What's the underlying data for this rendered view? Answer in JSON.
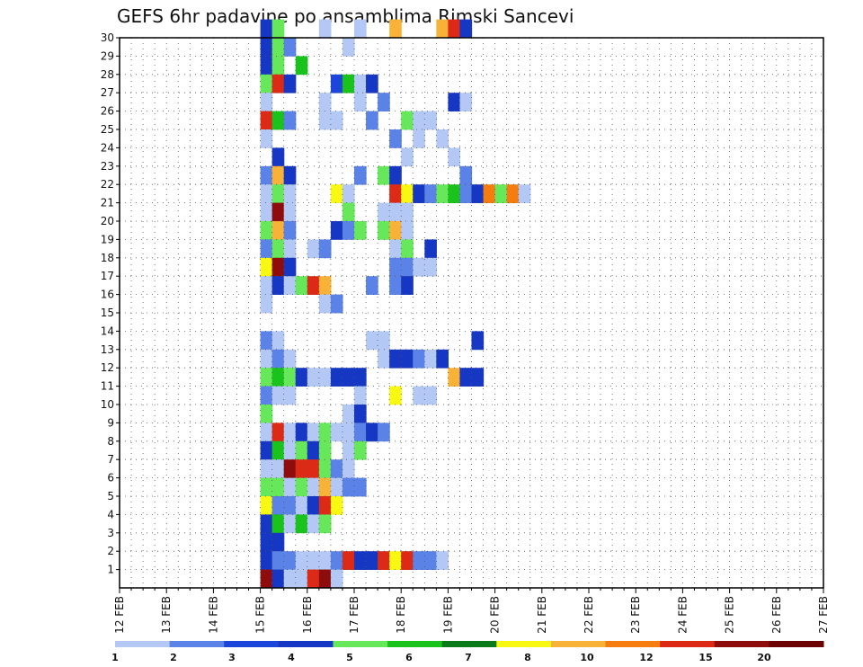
{
  "chart_data": {
    "type": "heatmap",
    "title": "GEFS 6hr padavine po ansamblima Rimski Sancevi",
    "xlabel": "",
    "ylabel": "",
    "x_ticks": [
      "12 FEB",
      "13 FEB",
      "14 FEB",
      "15 FEB",
      "16 FEB",
      "17 FEB",
      "18 FEB",
      "19 FEB",
      "20 FEB",
      "21 FEB",
      "22 FEB",
      "23 FEB",
      "24 FEB",
      "25 FEB",
      "26 FEB",
      "27 FEB"
    ],
    "xlim": [
      0,
      60
    ],
    "ylim": [
      0,
      30
    ],
    "y_ticks": [
      "1",
      "2",
      "3",
      "4",
      "5",
      "6",
      "7",
      "8",
      "9",
      "10",
      "11",
      "12",
      "13",
      "14",
      "15",
      "16",
      "17",
      "18",
      "19",
      "20",
      "21",
      "22",
      "23",
      "24",
      "25",
      "26",
      "27",
      "28",
      "29",
      "30"
    ],
    "grid": true,
    "legend": {
      "position": "bottom",
      "labels": [
        "1",
        "2",
        "3",
        "4",
        "5",
        "6",
        "7",
        "8",
        "10",
        "12",
        "15",
        "20"
      ],
      "colors": [
        "#b3c8f4",
        "#5b82e6",
        "#1c46d9",
        "#1636c4",
        "#66e85a",
        "#19c31c",
        "#0b7a1a",
        "#f8f813",
        "#f9b238",
        "#f57c0e",
        "#dc2a17",
        "#8f0c0c",
        "#6b0000"
      ]
    },
    "cells": [
      [
        1,
        30,
        4
      ],
      [
        2,
        30,
        5
      ],
      [
        6,
        30,
        1
      ],
      [
        9,
        30,
        1
      ],
      [
        12,
        30,
        9
      ],
      [
        16,
        30,
        9
      ],
      [
        17,
        30,
        11
      ],
      [
        18,
        30,
        4
      ],
      [
        1,
        29,
        4
      ],
      [
        2,
        29,
        5
      ],
      [
        3,
        29,
        2
      ],
      [
        8,
        29,
        1
      ],
      [
        1,
        28,
        4
      ],
      [
        2,
        28,
        5
      ],
      [
        4,
        28,
        6
      ],
      [
        1,
        27,
        5
      ],
      [
        2,
        27,
        11
      ],
      [
        3,
        27,
        4
      ],
      [
        7,
        27,
        3
      ],
      [
        8,
        27,
        6
      ],
      [
        9,
        27,
        1
      ],
      [
        10,
        27,
        4
      ],
      [
        1,
        26,
        1
      ],
      [
        6,
        26,
        1
      ],
      [
        9,
        26,
        1
      ],
      [
        11,
        26,
        2
      ],
      [
        17,
        26,
        4
      ],
      [
        18,
        26,
        1
      ],
      [
        1,
        25,
        11
      ],
      [
        2,
        25,
        6
      ],
      [
        3,
        25,
        2
      ],
      [
        6,
        25,
        1
      ],
      [
        7,
        25,
        1
      ],
      [
        10,
        25,
        2
      ],
      [
        13,
        25,
        5
      ],
      [
        14,
        25,
        1
      ],
      [
        15,
        25,
        1
      ],
      [
        1,
        24,
        1
      ],
      [
        12,
        24,
        2
      ],
      [
        14,
        24,
        1
      ],
      [
        16,
        24,
        1
      ],
      [
        2,
        23,
        4
      ],
      [
        13,
        23,
        1
      ],
      [
        17,
        23,
        1
      ],
      [
        1,
        22,
        2
      ],
      [
        2,
        22,
        9
      ],
      [
        3,
        22,
        4
      ],
      [
        9,
        22,
        2
      ],
      [
        11,
        22,
        5
      ],
      [
        12,
        22,
        4
      ],
      [
        18,
        22,
        2
      ],
      [
        1,
        21,
        1
      ],
      [
        2,
        21,
        5
      ],
      [
        3,
        21,
        1
      ],
      [
        7,
        21,
        8
      ],
      [
        8,
        21,
        1
      ],
      [
        12,
        21,
        11
      ],
      [
        13,
        21,
        8
      ],
      [
        14,
        21,
        4
      ],
      [
        15,
        21,
        2
      ],
      [
        16,
        21,
        5
      ],
      [
        17,
        21,
        6
      ],
      [
        18,
        21,
        2
      ],
      [
        19,
        21,
        4
      ],
      [
        20,
        21,
        10
      ],
      [
        21,
        21,
        5
      ],
      [
        22,
        21,
        10
      ],
      [
        23,
        21,
        1
      ],
      [
        1,
        20,
        1
      ],
      [
        2,
        20,
        12
      ],
      [
        3,
        20,
        1
      ],
      [
        8,
        20,
        5
      ],
      [
        11,
        20,
        1
      ],
      [
        12,
        20,
        1
      ],
      [
        13,
        20,
        1
      ],
      [
        1,
        19,
        5
      ],
      [
        2,
        19,
        9
      ],
      [
        3,
        19,
        2
      ],
      [
        7,
        19,
        4
      ],
      [
        8,
        19,
        2
      ],
      [
        9,
        19,
        5
      ],
      [
        11,
        19,
        5
      ],
      [
        12,
        19,
        9
      ],
      [
        13,
        19,
        1
      ],
      [
        1,
        18,
        2
      ],
      [
        2,
        18,
        5
      ],
      [
        3,
        18,
        1
      ],
      [
        5,
        18,
        1
      ],
      [
        6,
        18,
        2
      ],
      [
        12,
        18,
        1
      ],
      [
        13,
        18,
        5
      ],
      [
        15,
        18,
        4
      ],
      [
        1,
        17,
        8
      ],
      [
        2,
        17,
        12
      ],
      [
        3,
        17,
        4
      ],
      [
        12,
        17,
        2
      ],
      [
        13,
        17,
        2
      ],
      [
        14,
        17,
        1
      ],
      [
        15,
        17,
        1
      ],
      [
        1,
        16,
        1
      ],
      [
        2,
        16,
        4
      ],
      [
        3,
        16,
        1
      ],
      [
        4,
        16,
        5
      ],
      [
        5,
        16,
        11
      ],
      [
        6,
        16,
        9
      ],
      [
        10,
        16,
        2
      ],
      [
        12,
        16,
        2
      ],
      [
        13,
        16,
        4
      ],
      [
        1,
        15,
        1
      ],
      [
        6,
        15,
        1
      ],
      [
        7,
        15,
        2
      ],
      [
        1,
        13,
        2
      ],
      [
        2,
        13,
        1
      ],
      [
        10,
        13,
        1
      ],
      [
        11,
        13,
        1
      ],
      [
        19,
        13,
        4
      ],
      [
        1,
        12,
        1
      ],
      [
        2,
        12,
        2
      ],
      [
        3,
        12,
        1
      ],
      [
        11,
        12,
        1
      ],
      [
        12,
        12,
        4
      ],
      [
        13,
        12,
        4
      ],
      [
        14,
        12,
        2
      ],
      [
        15,
        12,
        1
      ],
      [
        16,
        12,
        4
      ],
      [
        1,
        11,
        5
      ],
      [
        2,
        11,
        6
      ],
      [
        3,
        11,
        5
      ],
      [
        4,
        11,
        4
      ],
      [
        5,
        11,
        1
      ],
      [
        6,
        11,
        1
      ],
      [
        7,
        11,
        4
      ],
      [
        8,
        11,
        4
      ],
      [
        9,
        11,
        4
      ],
      [
        17,
        11,
        9
      ],
      [
        18,
        11,
        4
      ],
      [
        19,
        11,
        4
      ],
      [
        1,
        10,
        2
      ],
      [
        2,
        10,
        1
      ],
      [
        3,
        10,
        1
      ],
      [
        9,
        10,
        1
      ],
      [
        12,
        10,
        8
      ],
      [
        14,
        10,
        1
      ],
      [
        15,
        10,
        1
      ],
      [
        1,
        9,
        5
      ],
      [
        8,
        9,
        1
      ],
      [
        9,
        9,
        4
      ],
      [
        1,
        8,
        1
      ],
      [
        2,
        8,
        11
      ],
      [
        3,
        8,
        1
      ],
      [
        4,
        8,
        4
      ],
      [
        5,
        8,
        1
      ],
      [
        6,
        8,
        5
      ],
      [
        7,
        8,
        1
      ],
      [
        8,
        8,
        1
      ],
      [
        9,
        8,
        2
      ],
      [
        10,
        8,
        4
      ],
      [
        11,
        8,
        2
      ],
      [
        1,
        7,
        4
      ],
      [
        2,
        7,
        6
      ],
      [
        3,
        7,
        1
      ],
      [
        4,
        7,
        5
      ],
      [
        5,
        7,
        4
      ],
      [
        6,
        7,
        5
      ],
      [
        8,
        7,
        1
      ],
      [
        9,
        7,
        5
      ],
      [
        1,
        6,
        1
      ],
      [
        2,
        6,
        1
      ],
      [
        3,
        6,
        12
      ],
      [
        4,
        6,
        11
      ],
      [
        5,
        6,
        11
      ],
      [
        6,
        6,
        5
      ],
      [
        7,
        6,
        2
      ],
      [
        8,
        6,
        1
      ],
      [
        1,
        5,
        5
      ],
      [
        2,
        5,
        5
      ],
      [
        3,
        5,
        1
      ],
      [
        4,
        5,
        5
      ],
      [
        5,
        5,
        1
      ],
      [
        6,
        5,
        9
      ],
      [
        7,
        5,
        1
      ],
      [
        8,
        5,
        2
      ],
      [
        9,
        5,
        2
      ],
      [
        1,
        4,
        8
      ],
      [
        2,
        4,
        2
      ],
      [
        3,
        4,
        2
      ],
      [
        4,
        4,
        1
      ],
      [
        5,
        4,
        4
      ],
      [
        6,
        4,
        11
      ],
      [
        7,
        4,
        8
      ],
      [
        1,
        3,
        4
      ],
      [
        2,
        3,
        6
      ],
      [
        3,
        3,
        1
      ],
      [
        4,
        3,
        6
      ],
      [
        5,
        3,
        1
      ],
      [
        6,
        3,
        5
      ],
      [
        1,
        2,
        4
      ],
      [
        2,
        2,
        4
      ],
      [
        1,
        1,
        4
      ],
      [
        2,
        1,
        2
      ],
      [
        3,
        1,
        2
      ],
      [
        4,
        1,
        1
      ],
      [
        5,
        1,
        1
      ],
      [
        6,
        1,
        1
      ],
      [
        7,
        1,
        2
      ],
      [
        8,
        1,
        11
      ],
      [
        9,
        1,
        4
      ],
      [
        10,
        1,
        4
      ],
      [
        11,
        1,
        11
      ],
      [
        12,
        1,
        8
      ],
      [
        13,
        1,
        11
      ],
      [
        14,
        1,
        2
      ],
      [
        15,
        1,
        2
      ],
      [
        16,
        1,
        1
      ],
      [
        1,
        0,
        12
      ],
      [
        2,
        0,
        4
      ],
      [
        3,
        0,
        1
      ],
      [
        4,
        0,
        1
      ],
      [
        5,
        0,
        11
      ],
      [
        6,
        0,
        12
      ],
      [
        7,
        0,
        1
      ]
    ]
  }
}
